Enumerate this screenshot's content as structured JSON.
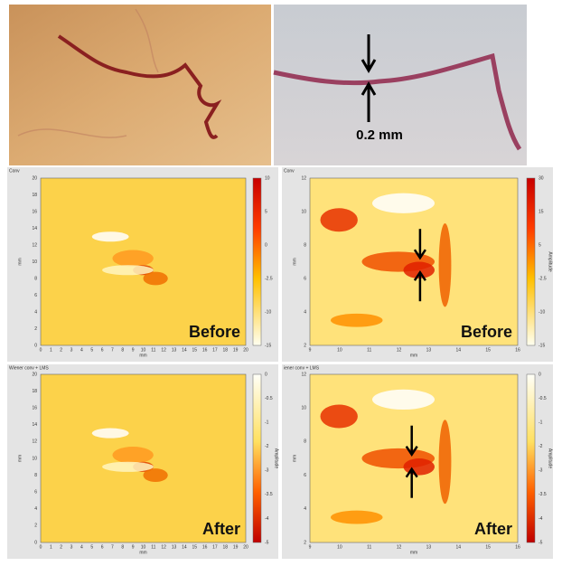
{
  "photos": {
    "scale_label": "0.2 mm"
  },
  "panels": [
    {
      "title": "Conv",
      "label": "Before",
      "x_axis_label": "mm",
      "y_axis_label": "mm",
      "xticks": [
        0,
        1,
        2,
        3,
        4,
        5,
        6,
        7,
        8,
        9,
        10,
        11,
        12,
        13,
        14,
        15,
        16,
        17,
        18,
        19,
        20
      ],
      "yticks": [
        0,
        2,
        4,
        6,
        8,
        10,
        12,
        14,
        16,
        18,
        20
      ],
      "colorbar_ticks": [
        10,
        5,
        0,
        -2.5,
        -10,
        -15
      ]
    },
    {
      "title": "Conv",
      "label": "Before",
      "x_axis_label": "mm",
      "y_axis_label": "mm",
      "colorbar_label": "Amplitude",
      "xticks": [
        9,
        10,
        11,
        12,
        13,
        14,
        15,
        16
      ],
      "yticks": [
        2,
        4,
        6,
        8,
        10,
        12
      ],
      "colorbar_ticks": [
        30,
        15,
        5,
        -2.5,
        -10,
        -15
      ]
    },
    {
      "title": "Wiener conv + LMS",
      "label": "After",
      "x_axis_label": "mm",
      "y_axis_label": "mm",
      "colorbar_label": "Amplitude",
      "xticks": [
        0,
        1,
        2,
        3,
        4,
        5,
        6,
        7,
        8,
        9,
        10,
        11,
        12,
        13,
        14,
        15,
        16,
        17,
        18,
        19,
        20
      ],
      "yticks": [
        0,
        2,
        4,
        6,
        8,
        10,
        12,
        14,
        16,
        18,
        20
      ],
      "colorbar_ticks": [
        0,
        -0.5,
        -1,
        -2,
        -3,
        -3.5,
        -4,
        -5
      ]
    },
    {
      "title": "iener conv + LMS",
      "label": "After",
      "x_axis_label": "mm",
      "y_axis_label": "mm",
      "colorbar_label": "Amplitude",
      "xticks": [
        9,
        10,
        11,
        12,
        13,
        14,
        15,
        16
      ],
      "yticks": [
        2,
        4,
        6,
        8,
        10,
        12
      ],
      "colorbar_ticks": [
        0,
        -0.5,
        -1,
        -2,
        -3,
        -3.5,
        -4,
        -5
      ]
    }
  ]
}
